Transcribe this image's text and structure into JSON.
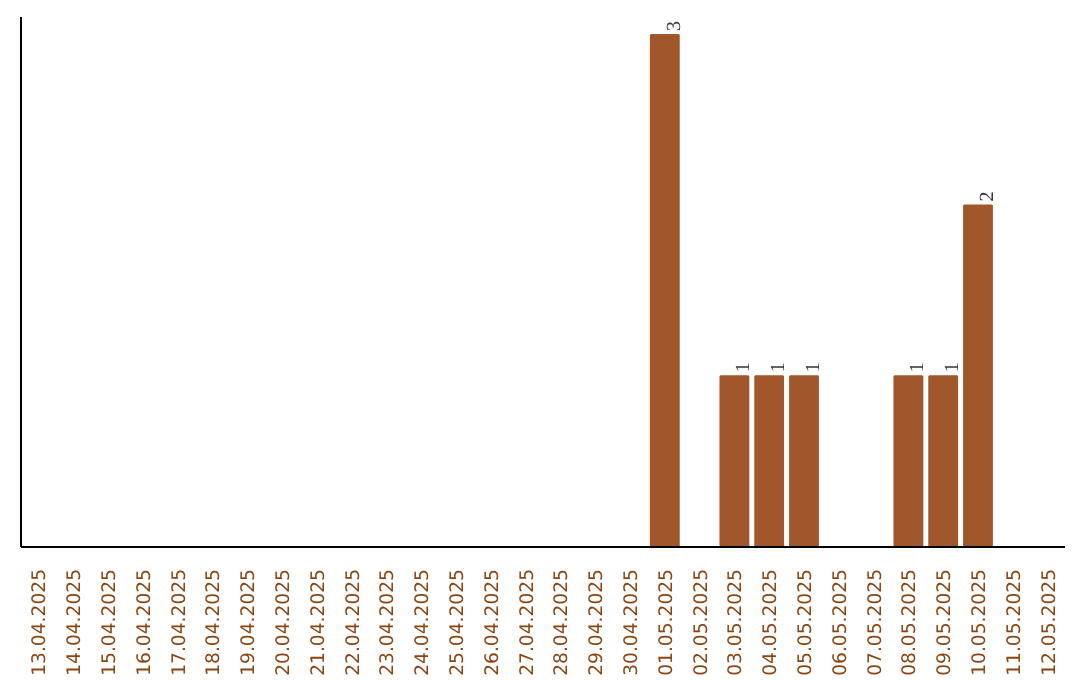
{
  "chart_data": {
    "type": "bar",
    "categories": [
      "13.04.2025",
      "14.04.2025",
      "15.04.2025",
      "16.04.2025",
      "17.04.2025",
      "18.04.2025",
      "19.04.2025",
      "20.04.2025",
      "21.04.2025",
      "22.04.2025",
      "23.04.2025",
      "24.04.2025",
      "25.04.2025",
      "26.04.2025",
      "27.04.2025",
      "28.04.2025",
      "29.04.2025",
      "30.04.2025",
      "01.05.2025",
      "02.05.2025",
      "03.05.2025",
      "04.05.2025",
      "05.05.2025",
      "06.05.2025",
      "07.05.2025",
      "08.05.2025",
      "09.05.2025",
      "10.05.2025",
      "11.05.2025",
      "12.05.2025"
    ],
    "values": [
      null,
      null,
      null,
      null,
      null,
      null,
      null,
      null,
      null,
      null,
      null,
      null,
      null,
      null,
      null,
      null,
      null,
      null,
      3,
      null,
      1,
      1,
      1,
      null,
      null,
      1,
      1,
      2,
      null,
      null
    ],
    "color": "#a0572b",
    "data_labels": true,
    "grid": false
  }
}
